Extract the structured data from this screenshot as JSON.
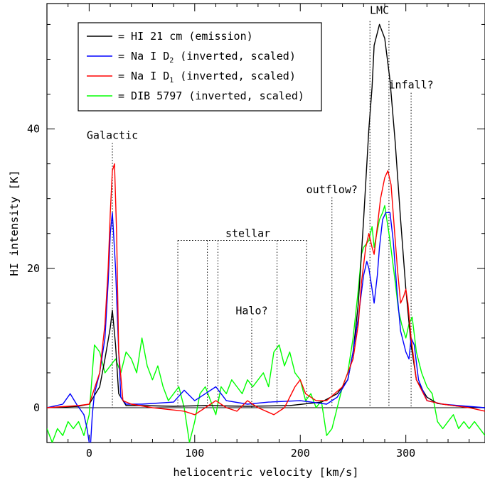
{
  "chart_data": {
    "type": "line",
    "xlabel": "heliocentric velocity [km/s]",
    "ylabel": "HI intensity [K]",
    "xlim": [
      -40,
      375
    ],
    "ylim": [
      -5,
      58
    ],
    "x_ticks": [
      0,
      100,
      200,
      300
    ],
    "y_ticks": [
      0,
      20,
      40
    ],
    "legend_position": "top-left",
    "series": [
      {
        "name": "HI 21 cm (emission)",
        "label_main": "= HI 21 cm (emission)",
        "label_sub": "",
        "label_tail": "",
        "color": "#000000",
        "x": [
          -40,
          -10,
          0,
          10,
          15,
          20,
          22,
          25,
          28,
          35,
          50,
          80,
          110,
          150,
          190,
          220,
          235,
          245,
          250,
          255,
          260,
          265,
          268,
          270,
          275,
          280,
          285,
          290,
          295,
          300,
          305,
          310,
          320,
          330,
          345,
          360,
          375
        ],
        "y": [
          0,
          0.2,
          0.5,
          3,
          7,
          11.5,
          14,
          9,
          2,
          0.3,
          0.3,
          0.2,
          0.3,
          0.2,
          0.3,
          0.8,
          2,
          4,
          8,
          15,
          27,
          40,
          46,
          52,
          55,
          53,
          47,
          38,
          27,
          17,
          9,
          4,
          1.5,
          0.6,
          0.3,
          0.1,
          0
        ]
      },
      {
        "name": "Na I D2 (inverted, scaled)",
        "label_main": "= Na I D",
        "label_sub": "2",
        "label_tail": " (inverted, scaled)",
        "color": "#0000ff",
        "x": [
          -40,
          -25,
          -18,
          -12,
          -5,
          -2,
          1,
          3,
          5,
          10,
          15,
          18,
          20,
          22,
          25,
          28,
          30,
          35,
          50,
          80,
          90,
          100,
          110,
          120,
          130,
          150,
          170,
          200,
          225,
          235,
          245,
          250,
          255,
          260,
          263,
          265,
          268,
          270,
          273,
          275,
          278,
          281,
          285,
          288,
          292,
          295,
          300,
          303,
          305,
          308,
          312,
          320,
          335,
          350,
          375
        ],
        "y": [
          0,
          0.5,
          2,
          0.5,
          -1,
          -3,
          -6,
          -1,
          2,
          5,
          10,
          18,
          25,
          28,
          20,
          8,
          1.5,
          0.5,
          0.5,
          0.8,
          2.5,
          1,
          2,
          3,
          1,
          0.5,
          0.8,
          1,
          0.5,
          1.5,
          4,
          8,
          13,
          19,
          21,
          20,
          17,
          15,
          19,
          23,
          27,
          28,
          28,
          24,
          16,
          11,
          8,
          7,
          10,
          9,
          4,
          1,
          0.5,
          0.3,
          0
        ]
      },
      {
        "name": "Na I D1 (inverted, scaled)",
        "label_main": "= Na I D",
        "label_sub": "1",
        "label_tail": " (inverted, scaled)",
        "color": "#ff0000",
        "x": [
          -40,
          -10,
          0,
          10,
          15,
          18,
          20,
          22,
          24,
          26,
          28,
          32,
          40,
          60,
          90,
          100,
          110,
          120,
          130,
          140,
          150,
          160,
          175,
          185,
          195,
          200,
          205,
          215,
          225,
          240,
          250,
          255,
          258,
          262,
          265,
          268,
          270,
          273,
          276,
          280,
          283,
          286,
          289,
          292,
          295,
          298,
          300,
          302,
          305,
          310,
          320,
          335,
          360,
          375
        ],
        "y": [
          0,
          0.3,
          0.5,
          5,
          12,
          20,
          28,
          34,
          35,
          25,
          8,
          1,
          0.5,
          0,
          -0.5,
          -1,
          0,
          1,
          0,
          -0.5,
          1,
          0,
          -1,
          0,
          3,
          4,
          2,
          1,
          1,
          3,
          7,
          12,
          18,
          23,
          25,
          23,
          22,
          26,
          30,
          33,
          34,
          32,
          26,
          20,
          15,
          16,
          17,
          15,
          10,
          4,
          1,
          0.5,
          0,
          -0.5
        ]
      },
      {
        "name": "DIB 5797 (inverted, scaled)",
        "label_main": "= DIB 5797 (inverted, scaled)",
        "label_sub": "",
        "label_tail": "",
        "color": "#00ff00",
        "x": [
          -40,
          -35,
          -30,
          -25,
          -20,
          -15,
          -10,
          -5,
          0,
          3,
          5,
          10,
          15,
          20,
          25,
          30,
          35,
          40,
          45,
          50,
          55,
          60,
          65,
          70,
          75,
          80,
          85,
          90,
          95,
          100,
          105,
          110,
          115,
          120,
          125,
          130,
          135,
          140,
          145,
          150,
          155,
          160,
          165,
          170,
          175,
          180,
          185,
          190,
          195,
          200,
          205,
          210,
          215,
          220,
          225,
          230,
          235,
          240,
          245,
          250,
          255,
          258,
          260,
          265,
          268,
          270,
          275,
          278,
          280,
          285,
          290,
          293,
          296,
          300,
          303,
          306,
          310,
          315,
          320,
          325,
          330,
          335,
          340,
          345,
          350,
          355,
          360,
          365,
          370,
          375
        ],
        "y": [
          -3,
          -5,
          -3,
          -4,
          -2,
          -3,
          -2,
          -4,
          -1,
          5,
          9,
          8,
          5,
          6,
          7,
          5,
          8,
          7,
          5,
          10,
          6,
          4,
          6,
          3,
          1,
          2,
          3,
          0,
          -5,
          -2,
          2,
          3,
          1,
          -1,
          3,
          2,
          4,
          3,
          2,
          4,
          3,
          4,
          5,
          3,
          8,
          9,
          6,
          8,
          5,
          4,
          1,
          2,
          0,
          1,
          -4,
          -3,
          0,
          3,
          5,
          10,
          17,
          22,
          23,
          24,
          26,
          23,
          27,
          28,
          29,
          24,
          18,
          14,
          12,
          10,
          12,
          13,
          8,
          5,
          3,
          2,
          -2,
          -3,
          -2,
          -1,
          -3,
          -2,
          -3,
          -2,
          -3,
          -4
        ]
      }
    ],
    "annotations": [
      {
        "text": "Galactic",
        "x": 22,
        "y_top": 38.6
      },
      {
        "text": "LMC",
        "x_left": 266,
        "x_right": 284,
        "y_top": 56.5
      },
      {
        "text": "infall?",
        "x": 305,
        "y_top": 45.8
      },
      {
        "text": "outflow?",
        "x": 230,
        "y_top": 30.8
      },
      {
        "text": "stellar",
        "x_left": 84,
        "x_right": 206,
        "inner_x": [
          112,
          122,
          178
        ],
        "y_top": 24.0
      },
      {
        "text": "Halo?",
        "x": 154,
        "y_top": 13.4
      }
    ]
  }
}
